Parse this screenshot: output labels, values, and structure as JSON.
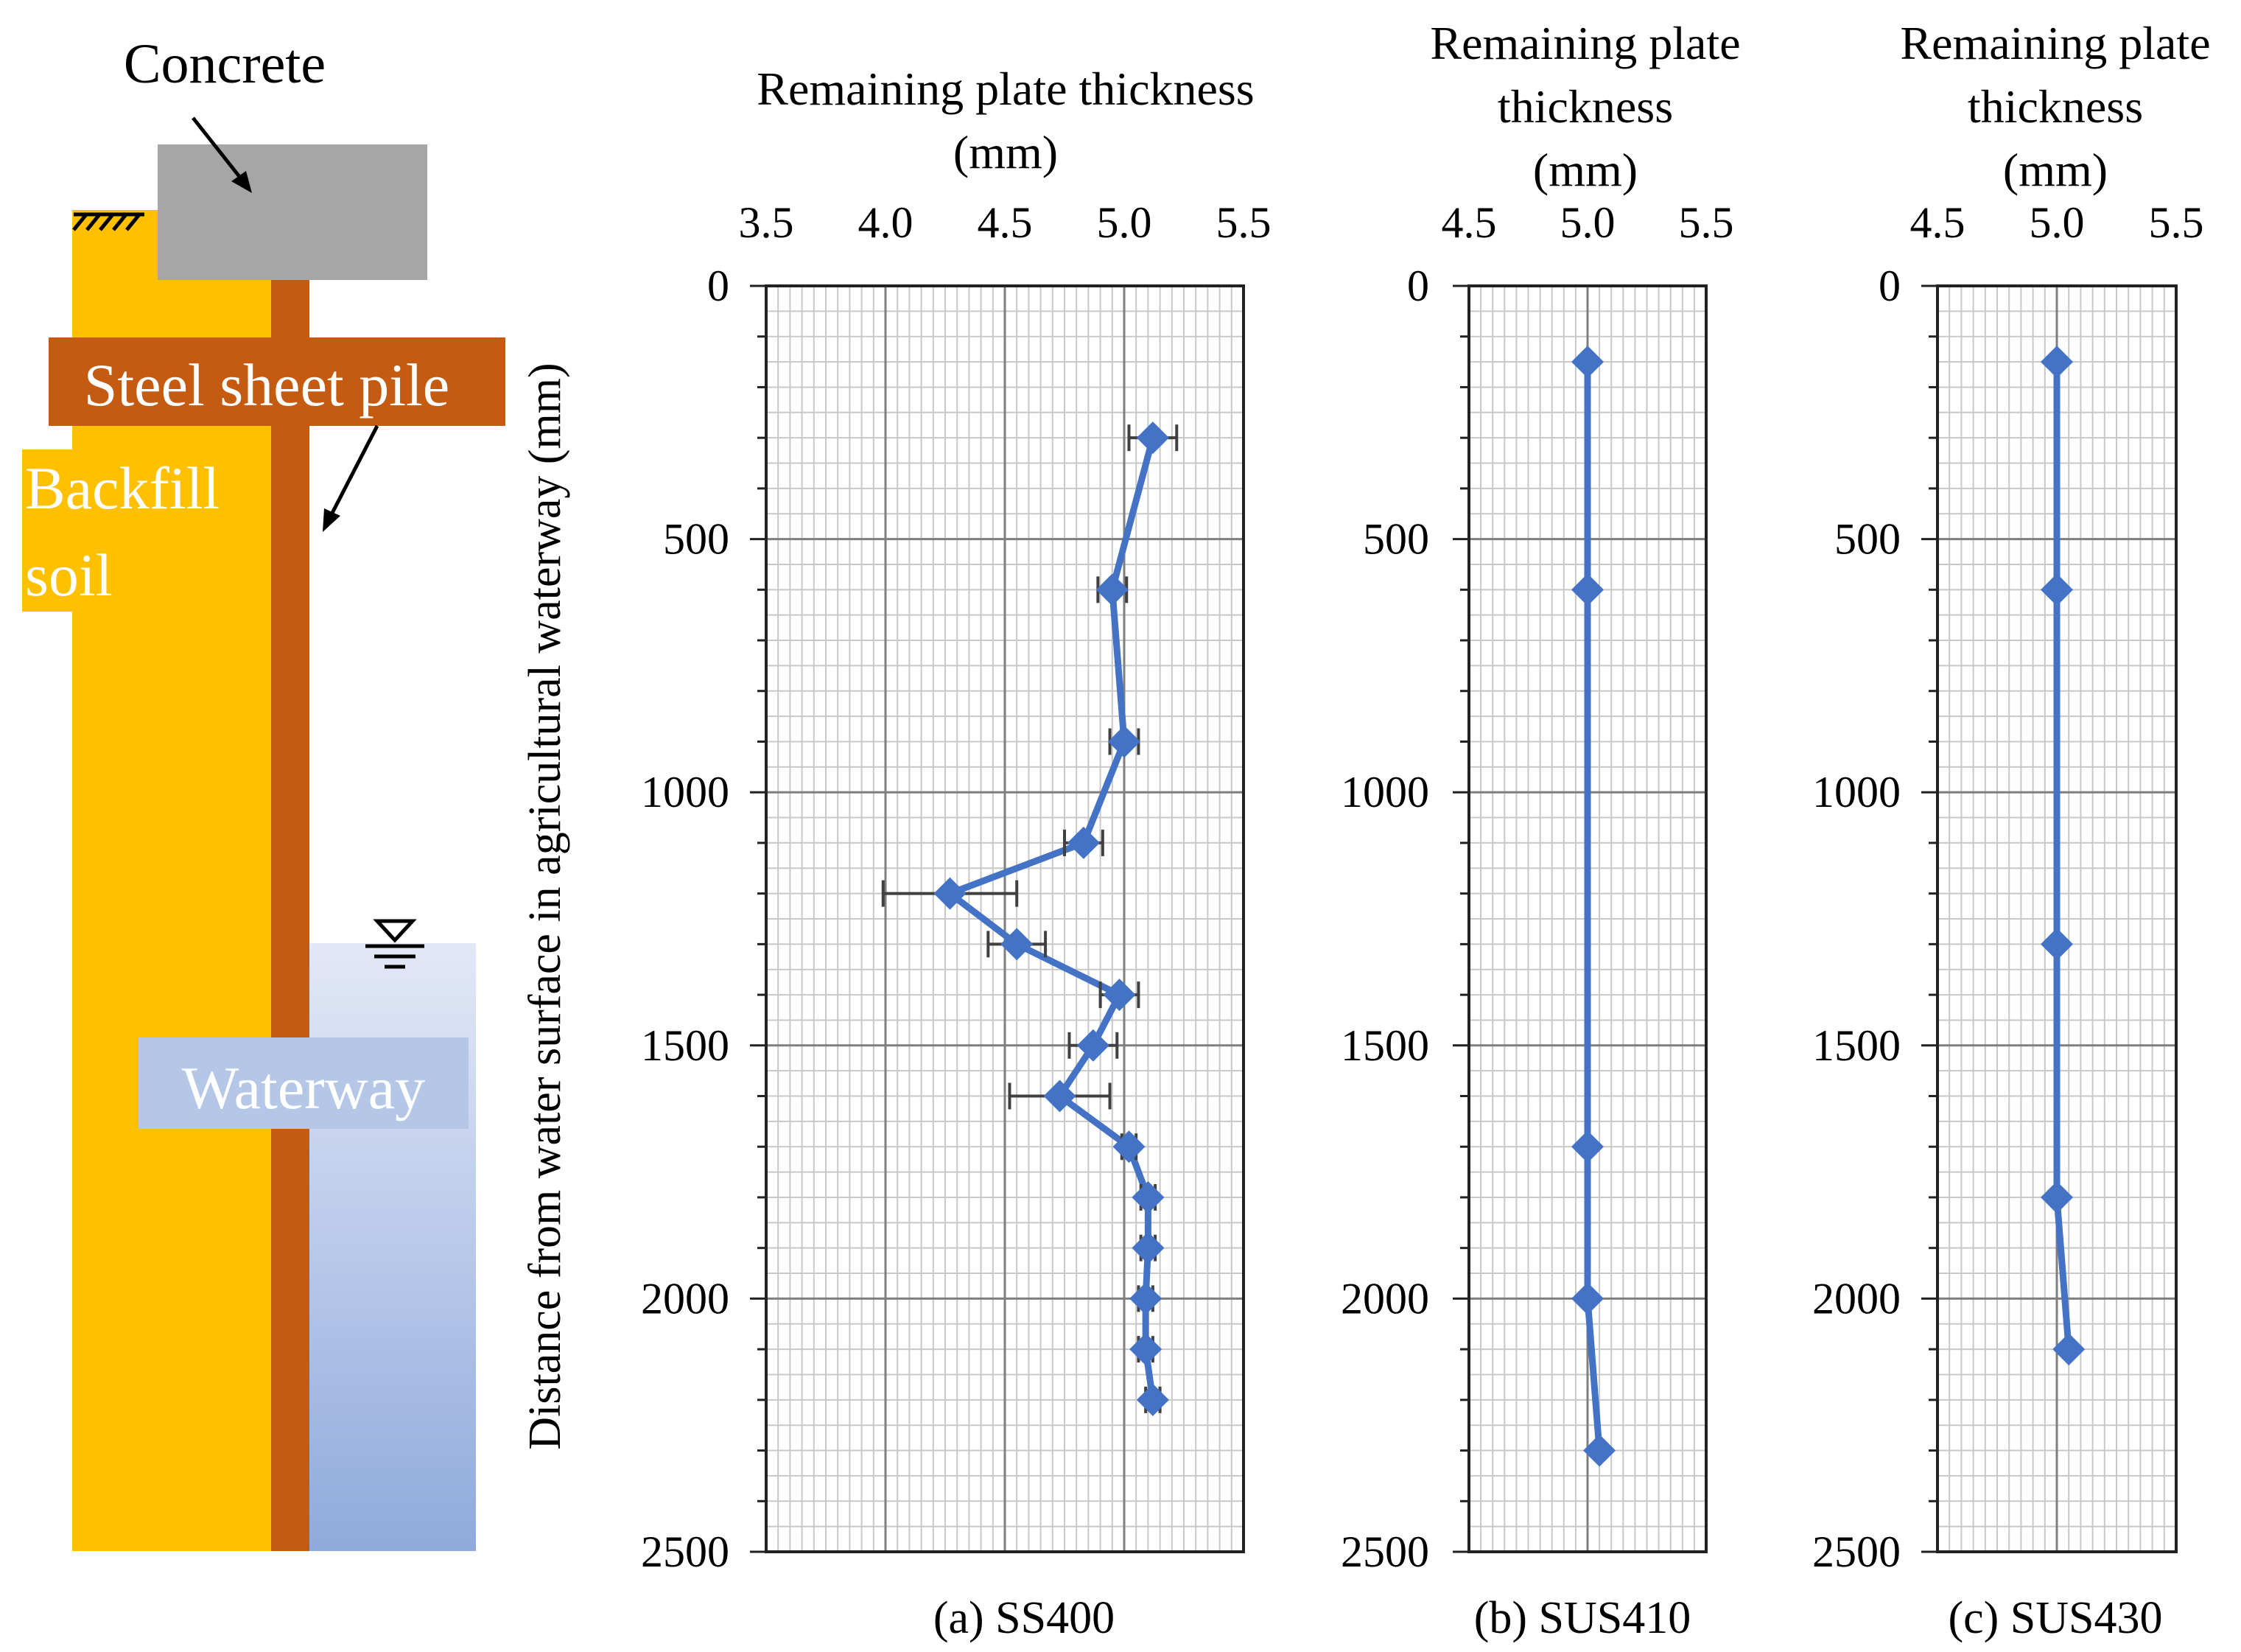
{
  "diagram": {
    "labels": {
      "concrete": "Concrete",
      "steel_sheet_pile": "Steel sheet pile",
      "backfill_line1": "Backfill",
      "backfill_line2": "soil",
      "waterway": "Waterway"
    },
    "colors": {
      "backfill": "#FFC000",
      "steel_pile": "#C55A11",
      "concrete": "#A6A6A6",
      "water_top": "#E3E8F7",
      "water_bottom": "#8FAADC",
      "waterway_label_bg": "#B4C7E7"
    }
  },
  "chart_data": [
    {
      "type": "scatter",
      "caption": "(a)  SS400",
      "title_lines": [
        "Remaining plate thickness",
        "(mm)"
      ],
      "xlim": [
        3.5,
        5.5
      ],
      "x_ticks": [
        "3.5",
        "4.0",
        "4.5",
        "5.0",
        "5.5"
      ],
      "ylim": [
        0,
        2500
      ],
      "y_inverted": true,
      "y_ticks": [
        "0",
        "500",
        "1000",
        "1500",
        "2000",
        "2500"
      ],
      "ylabel": "Distance from water surface in agricultural waterway (mm)",
      "grid": true,
      "series": [
        {
          "marker": "diamond",
          "color": "#4472C4",
          "points": [
            {
              "x": 5.12,
              "y": 300,
              "err": 0.1
            },
            {
              "x": 4.95,
              "y": 600,
              "err": 0.06
            },
            {
              "x": 5.0,
              "y": 900,
              "err": 0.06
            },
            {
              "x": 4.83,
              "y": 1100,
              "err": 0.08
            },
            {
              "x": 4.27,
              "y": 1200,
              "err": 0.28
            },
            {
              "x": 4.55,
              "y": 1300,
              "err": 0.12
            },
            {
              "x": 4.98,
              "y": 1400,
              "err": 0.08
            },
            {
              "x": 4.87,
              "y": 1500,
              "err": 0.1
            },
            {
              "x": 4.73,
              "y": 1600,
              "err": 0.21
            },
            {
              "x": 5.02,
              "y": 1700,
              "err": 0.03
            },
            {
              "x": 5.1,
              "y": 1800,
              "err": 0.03
            },
            {
              "x": 5.1,
              "y": 1900,
              "err": 0.03
            },
            {
              "x": 5.09,
              "y": 2000,
              "err": 0.03
            },
            {
              "x": 5.09,
              "y": 2100,
              "err": 0.03
            },
            {
              "x": 5.12,
              "y": 2200,
              "err": 0.03
            }
          ]
        }
      ]
    },
    {
      "type": "scatter",
      "caption": "(b)  SUS410",
      "title_lines": [
        "Remaining plate",
        "thickness",
        "(mm)"
      ],
      "xlim": [
        4.5,
        5.5
      ],
      "x_ticks": [
        "4.5",
        "5.0",
        "5.5"
      ],
      "ylim": [
        0,
        2500
      ],
      "y_inverted": true,
      "y_ticks": [
        "0",
        "500",
        "1000",
        "1500",
        "2000",
        "2500"
      ],
      "grid": true,
      "series": [
        {
          "marker": "diamond",
          "color": "#4472C4",
          "points": [
            {
              "x": 5.0,
              "y": 150
            },
            {
              "x": 5.0,
              "y": 600
            },
            {
              "x": 5.0,
              "y": 1700
            },
            {
              "x": 5.0,
              "y": 2000
            },
            {
              "x": 5.05,
              "y": 2300
            }
          ]
        }
      ]
    },
    {
      "type": "scatter",
      "caption": "(c)  SUS430",
      "title_lines": [
        "Remaining plate",
        "thickness",
        "(mm)"
      ],
      "xlim": [
        4.5,
        5.5
      ],
      "x_ticks": [
        "4.5",
        "5.0",
        "5.5"
      ],
      "ylim": [
        0,
        2500
      ],
      "y_inverted": true,
      "y_ticks": [
        "0",
        "500",
        "1000",
        "1500",
        "2000",
        "2500"
      ],
      "grid": true,
      "series": [
        {
          "marker": "diamond",
          "color": "#4472C4",
          "points": [
            {
              "x": 5.0,
              "y": 150
            },
            {
              "x": 5.0,
              "y": 600
            },
            {
              "x": 5.0,
              "y": 1300
            },
            {
              "x": 5.0,
              "y": 1800
            },
            {
              "x": 5.05,
              "y": 2100
            }
          ]
        }
      ]
    }
  ]
}
